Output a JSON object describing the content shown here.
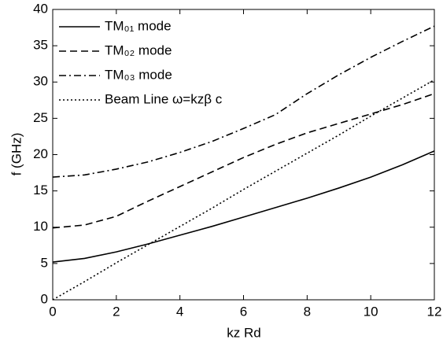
{
  "chart_data": {
    "type": "line",
    "x_label": "kz Rd",
    "y_label": "f (GHz)",
    "x": [
      0,
      1,
      2,
      3,
      4,
      5,
      6,
      7,
      8,
      9,
      10,
      11,
      12
    ],
    "series": [
      {
        "name": "TM₀₁ mode",
        "color": "#000000",
        "dash": "solid",
        "values": [
          5.2,
          5.7,
          6.6,
          7.7,
          8.9,
          10.1,
          11.4,
          12.7,
          14.0,
          15.4,
          16.9,
          18.6,
          20.5
        ]
      },
      {
        "name": "TM₀₂ mode",
        "color": "#000000",
        "dash": "dashed",
        "values": [
          9.9,
          10.3,
          11.5,
          13.6,
          15.6,
          17.6,
          19.6,
          21.4,
          23.0,
          24.3,
          25.6,
          26.9,
          28.4
        ]
      },
      {
        "name": "TM₀₃ mode",
        "color": "#000000",
        "dash": "dashdot",
        "values": [
          16.9,
          17.2,
          18.0,
          19.0,
          20.3,
          21.8,
          23.6,
          25.5,
          28.4,
          31.0,
          33.4,
          35.6,
          37.7
        ]
      },
      {
        "name": "Beam Line ω=kzβ c",
        "color": "#000000",
        "dash": "dotted",
        "values": [
          0,
          2.5,
          5.1,
          7.6,
          10.1,
          12.6,
          15.2,
          17.7,
          20.2,
          22.7,
          25.3,
          27.8,
          30.3
        ]
      }
    ],
    "xlim": [
      0,
      12
    ],
    "xticks": [
      0,
      2,
      4,
      6,
      8,
      10,
      12
    ],
    "ylim": [
      0,
      40
    ],
    "yticks": [
      0,
      5,
      10,
      15,
      20,
      25,
      30,
      35,
      40
    ],
    "grid": false,
    "legend": "upper left"
  }
}
